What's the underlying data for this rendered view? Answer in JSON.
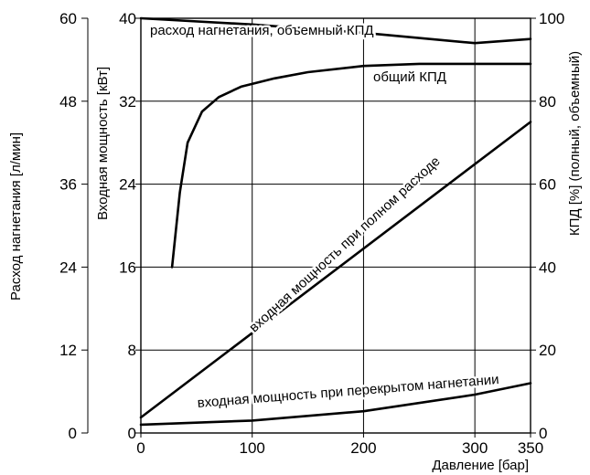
{
  "chart_data": {
    "type": "line",
    "x_axis": {
      "label": "Давление [бар]",
      "range": [
        0,
        350
      ],
      "ticks": [
        0,
        100,
        200,
        300,
        350
      ],
      "tick_labels": [
        "0",
        "100",
        "200",
        "300",
        "350"
      ]
    },
    "y_axes": {
      "flow": {
        "label": "Расход нагнетания [л/мин]",
        "range": [
          0,
          60
        ],
        "ticks": [
          0,
          12,
          24,
          36,
          48,
          60
        ],
        "tick_labels": [
          "0",
          "12",
          "24",
          "36",
          "48",
          "60"
        ]
      },
      "power": {
        "label": "Входная мощность [кВт]",
        "range": [
          0,
          40
        ],
        "ticks": [
          0,
          8,
          16,
          24,
          32,
          40
        ],
        "tick_labels": [
          "0",
          "8",
          "16",
          "24",
          "32",
          "40"
        ]
      },
      "efficiency": {
        "label": "КПД [%] (полный, объемный)",
        "range": [
          0,
          100
        ],
        "ticks": [
          0,
          20,
          40,
          60,
          80,
          100
        ],
        "tick_labels": [
          "0",
          "20",
          "40",
          "60",
          "80",
          "100"
        ]
      }
    },
    "grid": true,
    "series": [
      {
        "name": "расход нагнетания, объемный КПД",
        "axis": "efficiency",
        "points": [
          [
            0,
            100
          ],
          [
            100,
            98.5
          ],
          [
            200,
            96.5
          ],
          [
            300,
            94
          ],
          [
            350,
            95
          ]
        ]
      },
      {
        "name": "общий КПД",
        "axis": "efficiency",
        "points": [
          [
            28,
            40
          ],
          [
            35,
            58
          ],
          [
            42,
            70
          ],
          [
            55,
            77.5
          ],
          [
            70,
            81
          ],
          [
            90,
            83.5
          ],
          [
            120,
            85.5
          ],
          [
            150,
            87
          ],
          [
            200,
            88.5
          ],
          [
            250,
            89
          ],
          [
            300,
            89
          ],
          [
            350,
            89
          ]
        ]
      },
      {
        "name": "входная мощность при полном расходе",
        "axis": "power",
        "points": [
          [
            0,
            1.5
          ],
          [
            350,
            30
          ]
        ]
      },
      {
        "name": "входная мощность при перекрытом нагнетании",
        "axis": "power",
        "points": [
          [
            0,
            0.8
          ],
          [
            100,
            1.2
          ],
          [
            200,
            2.1
          ],
          [
            300,
            3.7
          ],
          [
            350,
            4.8
          ]
        ]
      }
    ]
  }
}
